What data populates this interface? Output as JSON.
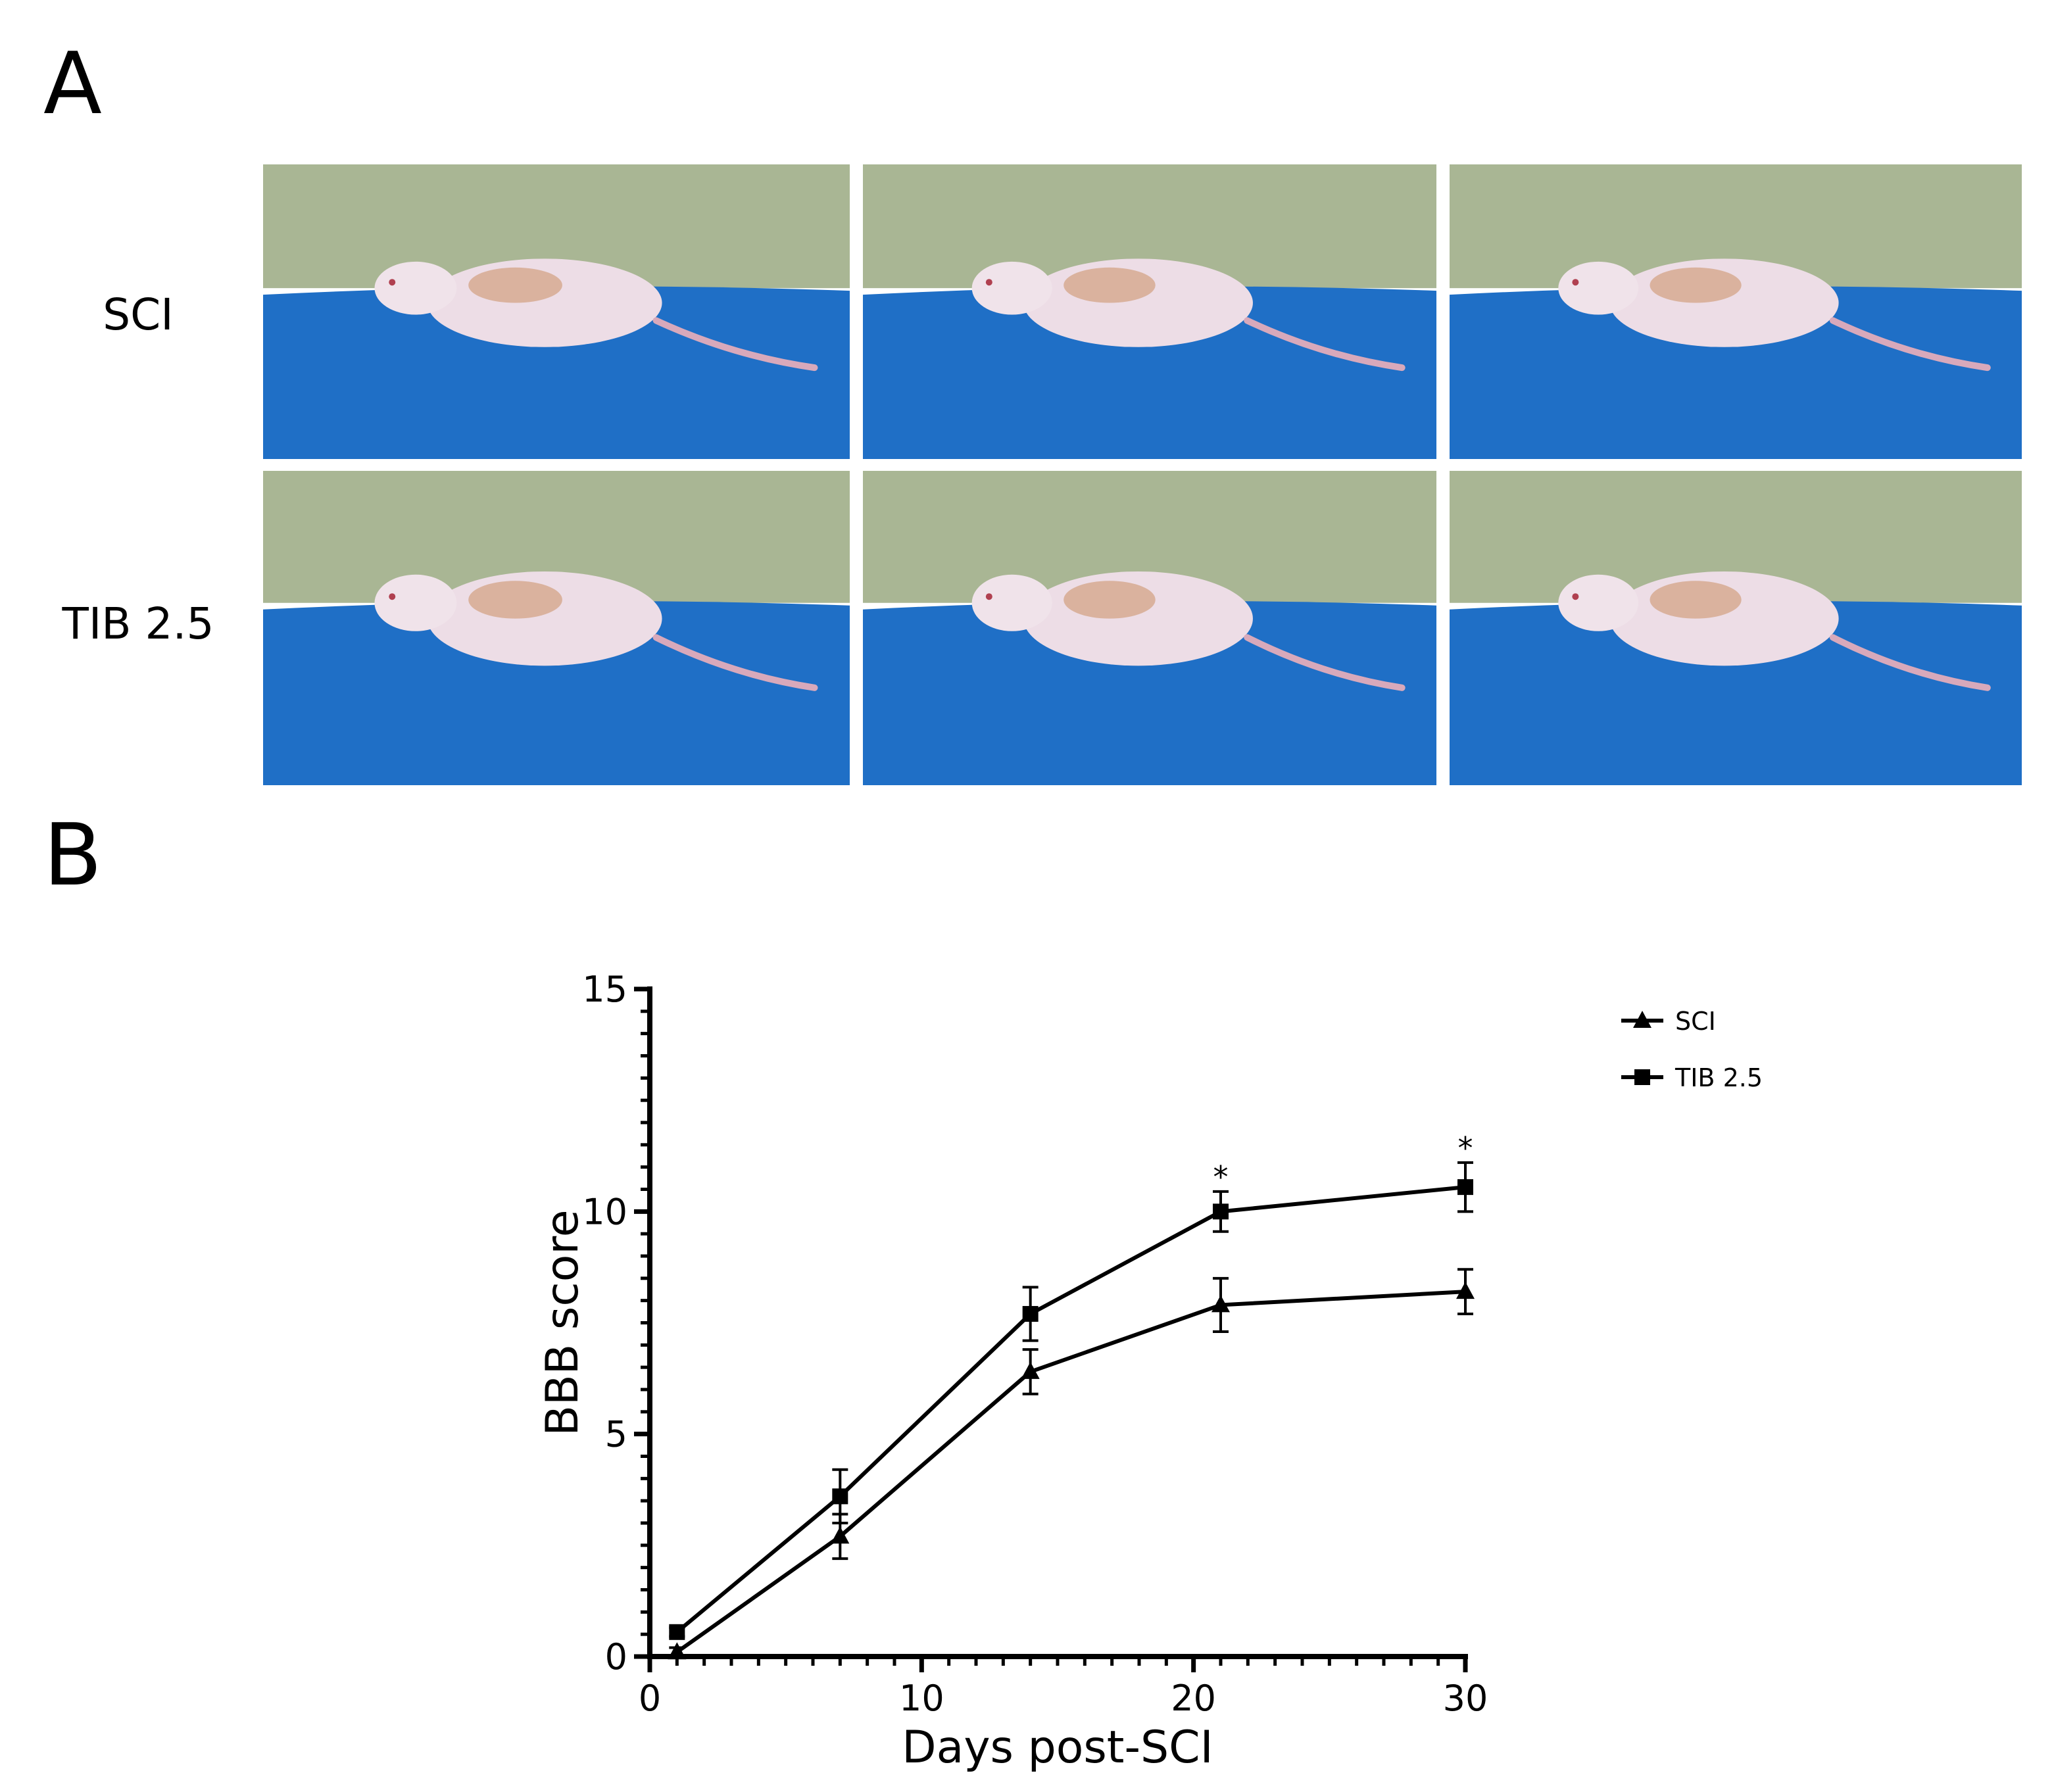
{
  "panel_a": {
    "letter": "A",
    "row_labels": [
      "SCI",
      "TIB 2.5"
    ],
    "photos": [
      {
        "row": "SCI",
        "index": 1,
        "description_icon": "rat-photo"
      },
      {
        "row": "SCI",
        "index": 2,
        "description_icon": "rat-photo"
      },
      {
        "row": "SCI",
        "index": 3,
        "description_icon": "rat-photo"
      },
      {
        "row": "TIB 2.5",
        "index": 1,
        "description_icon": "rat-photo"
      },
      {
        "row": "TIB 2.5",
        "index": 2,
        "description_icon": "rat-photo"
      },
      {
        "row": "TIB 2.5",
        "index": 3,
        "description_icon": "rat-photo"
      }
    ],
    "colors": {
      "floor": "#1f6fc6",
      "wall": "#a9b694"
    }
  },
  "panel_b": {
    "letter": "B"
  },
  "chart_data": {
    "type": "line",
    "xlabel": "Days post-SCI",
    "ylabel": "BBB score",
    "xlim": [
      0,
      30
    ],
    "ylim": [
      0,
      15
    ],
    "xticks": [
      0,
      10,
      20,
      30
    ],
    "yticks": [
      0,
      5,
      10,
      15
    ],
    "x_minor_step": 1,
    "y_minor_step": 0.5,
    "grid": false,
    "legend_position": "top-right",
    "series": [
      {
        "name": "SCI",
        "marker": "triangle",
        "x": [
          1,
          7,
          14,
          21,
          30
        ],
        "y": [
          0.1,
          2.7,
          6.4,
          7.9,
          8.2
        ],
        "error": [
          0.1,
          0.5,
          0.5,
          0.6,
          0.5
        ]
      },
      {
        "name": "TIB 2.5",
        "marker": "square",
        "x": [
          1,
          7,
          14,
          21,
          30
        ],
        "y": [
          0.55,
          3.6,
          7.7,
          10.0,
          10.55
        ],
        "error": [
          0.1,
          0.6,
          0.6,
          0.45,
          0.55
        ]
      }
    ],
    "annotations": [
      {
        "x": 21,
        "y": 10.45,
        "text": "*"
      },
      {
        "x": 30,
        "y": 11.1,
        "text": "*"
      }
    ]
  }
}
